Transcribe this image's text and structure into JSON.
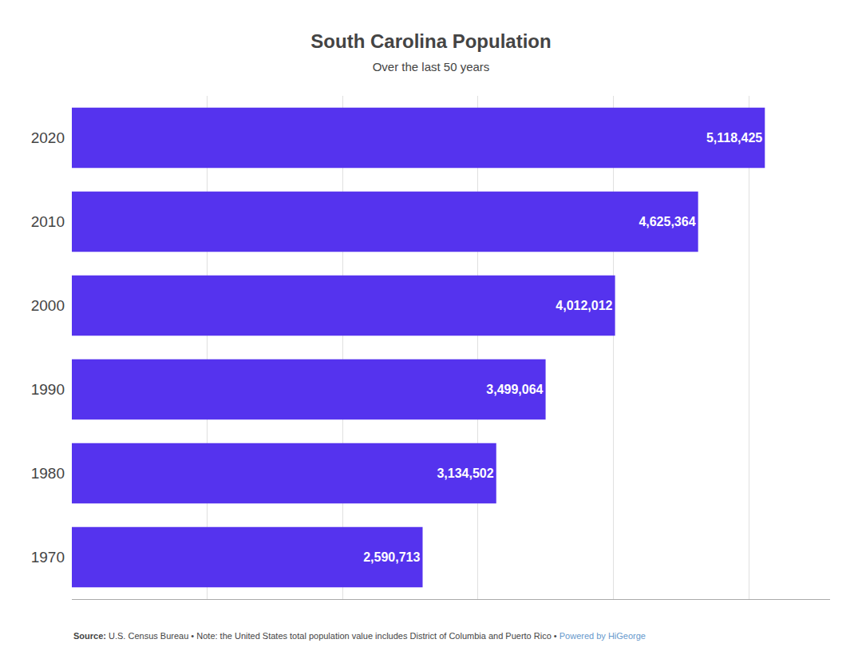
{
  "chart_data": {
    "type": "bar",
    "orientation": "horizontal",
    "title": "South Carolina Population",
    "subtitle": "Over the last 50 years",
    "categories": [
      "2020",
      "2010",
      "2000",
      "1990",
      "1980",
      "1970"
    ],
    "values": [
      5118425,
      4625364,
      4012012,
      3499064,
      3134502,
      2590713
    ],
    "value_labels": [
      "5,118,425",
      "4,625,364",
      "4,012,012",
      "3,499,064",
      "3,134,502",
      "2,590,713"
    ],
    "data_labels": true,
    "color": "#5533EE",
    "xlim": [
      0,
      5600000
    ],
    "xticks": [
      0,
      1000000,
      2000000,
      3000000,
      4000000,
      5000000
    ],
    "grid": true,
    "tick_labels": "y",
    "annotations": [
      "Source:",
      "U.S. Census Bureau • Note: the United States total population value includes District of Columbia and Puerto Rico •",
      "Powered by HiGeorge"
    ]
  }
}
